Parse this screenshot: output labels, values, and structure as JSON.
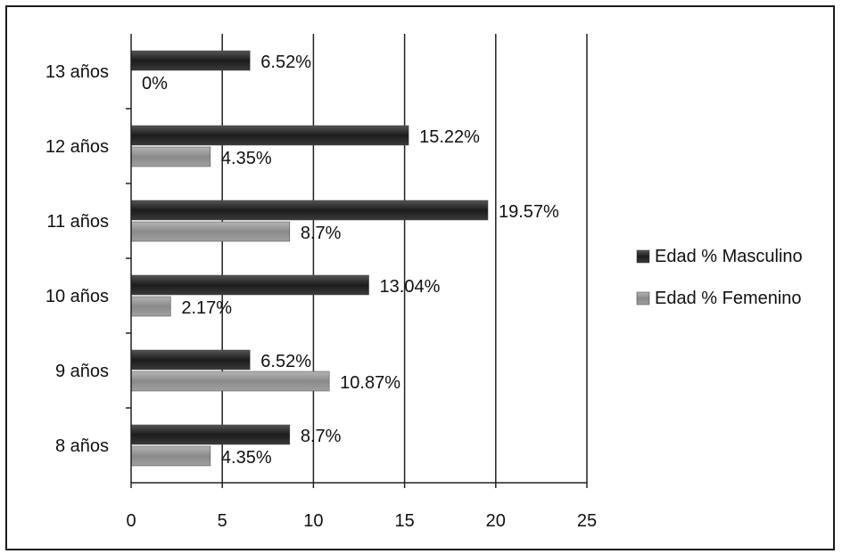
{
  "chart_data": {
    "type": "bar",
    "orientation": "horizontal",
    "categories": [
      "13 años",
      "12 años",
      "11 años",
      "10 años",
      "9 años",
      "8 años"
    ],
    "series": [
      {
        "name": "Edad % Masculino",
        "color": "#2b2b2b",
        "values": [
          6.52,
          15.22,
          19.57,
          13.04,
          6.52,
          8.7
        ],
        "labels": [
          "6.52%",
          "15.22%",
          "19.57%",
          "13.04%",
          "6.52%",
          "8.7%"
        ]
      },
      {
        "name": "Edad % Femenino",
        "color": "#8f8f8f",
        "values": [
          0,
          4.35,
          8.7,
          2.17,
          10.87,
          4.35
        ],
        "labels": [
          "0%",
          "4.35%",
          "8.7%",
          "2.17%",
          "10.87%",
          "4.35%"
        ]
      }
    ],
    "xlim": [
      0,
      25
    ],
    "xticks": [
      0,
      5,
      10,
      15,
      20,
      25
    ],
    "grid": "vertical",
    "legend_position": "right",
    "title": "",
    "xlabel": "",
    "ylabel": ""
  }
}
